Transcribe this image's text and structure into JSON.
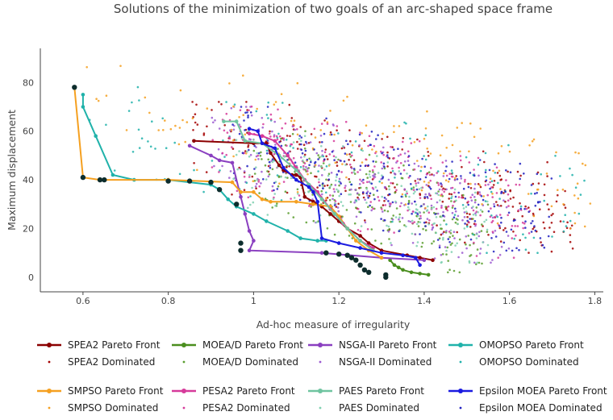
{
  "chart_data": {
    "type": "scatter",
    "title": "Solutions of the minimization of two goals of an arc-shaped space frame",
    "xlabel": "Ad-hoc measure of irregularity",
    "ylabel": "Maximum displacement",
    "xlim": [
      0.5,
      1.82
    ],
    "ylim": [
      -6,
      94
    ],
    "xticks": [
      "0.6",
      "0.8",
      "1",
      "1.2",
      "1.4",
      "1.6",
      "1.8"
    ],
    "yticks": [
      "0",
      "20",
      "40",
      "60",
      "80"
    ],
    "grid": false,
    "legend_position": "bottom",
    "series": [
      {
        "name": "SPEA2 Pareto Front",
        "role": "front",
        "color": "#8b0000",
        "points": [
          [
            0.86,
            56
          ],
          [
            1.0,
            55
          ],
          [
            1.03,
            55
          ],
          [
            1.04,
            51
          ],
          [
            1.06,
            46
          ],
          [
            1.07,
            44
          ],
          [
            1.09,
            42
          ],
          [
            1.1,
            42
          ],
          [
            1.11,
            41
          ],
          [
            1.12,
            33
          ],
          [
            1.14,
            31
          ],
          [
            1.16,
            29
          ],
          [
            1.18,
            26
          ],
          [
            1.2,
            23
          ],
          [
            1.22,
            20
          ],
          [
            1.25,
            17
          ],
          [
            1.27,
            14
          ],
          [
            1.3,
            11
          ],
          [
            1.36,
            9
          ],
          [
            1.39,
            8
          ],
          [
            1.42,
            7
          ]
        ]
      },
      {
        "name": "SPEA2 Dominated",
        "role": "dominated",
        "color": "#a40000",
        "region": [
          0.85,
          1.75,
          8,
          72
        ],
        "count": 260
      },
      {
        "name": "MOEA/D Pareto Front",
        "role": "front",
        "color": "#4a8e1e",
        "points": [
          [
            1.32,
            7
          ],
          [
            1.33,
            5
          ],
          [
            1.34,
            4
          ],
          [
            1.35,
            3
          ],
          [
            1.37,
            2
          ],
          [
            1.39,
            1.5
          ],
          [
            1.41,
            1
          ]
        ]
      },
      {
        "name": "MOEA/D Dominated",
        "role": "dominated",
        "color": "#5a9e2e",
        "region": [
          1.0,
          1.55,
          2,
          60
        ],
        "count": 220
      },
      {
        "name": "NSGA-II Pareto Front",
        "role": "front",
        "color": "#8a3fc0",
        "points": [
          [
            0.85,
            54
          ],
          [
            0.9,
            50
          ],
          [
            0.92,
            48
          ],
          [
            0.95,
            47
          ],
          [
            0.97,
            33
          ],
          [
            0.98,
            26
          ],
          [
            0.99,
            19
          ],
          [
            1.0,
            15
          ],
          [
            0.99,
            11
          ],
          [
            1.16,
            10
          ],
          [
            1.3,
            8
          ],
          [
            1.4,
            7
          ]
        ]
      },
      {
        "name": "NSGA-II Dominated",
        "role": "dominated",
        "color": "#9b59d0",
        "region": [
          0.9,
          1.6,
          6,
          70
        ],
        "count": 240
      },
      {
        "name": "OMOPSO Pareto Front",
        "role": "front",
        "color": "#20b2aa",
        "points": [
          [
            0.6,
            75
          ],
          [
            0.6,
            70
          ],
          [
            0.63,
            58
          ],
          [
            0.67,
            42
          ],
          [
            0.72,
            40
          ],
          [
            0.8,
            40
          ],
          [
            0.9,
            38
          ],
          [
            0.92,
            36
          ],
          [
            0.94,
            32
          ],
          [
            0.96,
            29
          ],
          [
            1.0,
            26
          ],
          [
            1.03,
            23
          ],
          [
            1.08,
            19
          ],
          [
            1.11,
            16
          ],
          [
            1.15,
            15
          ],
          [
            1.17,
            15
          ]
        ]
      },
      {
        "name": "OMOPSO Dominated",
        "role": "dominated",
        "color": "#20b2aa",
        "region": [
          0.6,
          1.78,
          10,
          82
        ],
        "count": 130
      },
      {
        "name": "SMPSO Pareto Front",
        "role": "front",
        "color": "#f5a020",
        "points": [
          [
            0.58,
            78
          ],
          [
            0.6,
            41
          ],
          [
            0.64,
            40
          ],
          [
            0.8,
            40
          ],
          [
            0.95,
            39
          ],
          [
            0.97,
            35
          ],
          [
            1.0,
            35
          ],
          [
            1.02,
            32
          ],
          [
            1.04,
            31
          ],
          [
            1.1,
            31
          ],
          [
            1.14,
            30
          ],
          [
            1.18,
            29
          ],
          [
            1.2,
            25
          ],
          [
            1.22,
            20
          ],
          [
            1.24,
            15
          ],
          [
            1.27,
            11
          ],
          [
            1.3,
            8
          ]
        ]
      },
      {
        "name": "SMPSO Dominated",
        "role": "dominated",
        "color": "#f5a020",
        "region": [
          0.6,
          1.8,
          20,
          90
        ],
        "count": 150
      },
      {
        "name": "PESA2 Pareto Front",
        "role": "front",
        "color": "#d63a9a",
        "points": [
          [
            0.99,
            59
          ],
          [
            1.02,
            58
          ],
          [
            1.05,
            56
          ],
          [
            1.08,
            50
          ],
          [
            1.1,
            45
          ],
          [
            1.12,
            40
          ],
          [
            1.15,
            35
          ],
          [
            1.18,
            28
          ],
          [
            1.21,
            22
          ],
          [
            1.25,
            15
          ],
          [
            1.28,
            12
          ]
        ]
      },
      {
        "name": "PESA2 Dominated",
        "role": "dominated",
        "color": "#d63a9a",
        "region": [
          0.9,
          1.65,
          8,
          72
        ],
        "count": 240
      },
      {
        "name": "PAES Pareto Front",
        "role": "front",
        "color": "#6fc4a0",
        "points": [
          [
            0.93,
            64
          ],
          [
            0.96,
            64
          ],
          [
            0.98,
            56
          ],
          [
            1.02,
            55
          ],
          [
            1.06,
            50
          ],
          [
            1.1,
            44
          ],
          [
            1.13,
            38
          ],
          [
            1.16,
            32
          ],
          [
            1.19,
            26
          ],
          [
            1.22,
            20
          ],
          [
            1.25,
            15
          ],
          [
            1.28,
            11
          ]
        ]
      },
      {
        "name": "PAES Dominated",
        "role": "dominated",
        "color": "#7fd0b0",
        "region": [
          0.95,
          1.55,
          6,
          60
        ],
        "count": 180
      },
      {
        "name": "Epsilon MOEA Pareto Front",
        "role": "front",
        "color": "#1a1ae0",
        "points": [
          [
            0.99,
            61
          ],
          [
            1.01,
            60
          ],
          [
            1.02,
            55
          ],
          [
            1.05,
            53
          ],
          [
            1.07,
            45
          ],
          [
            1.1,
            40
          ],
          [
            1.13,
            37
          ],
          [
            1.14,
            35
          ],
          [
            1.15,
            31
          ],
          [
            1.16,
            16
          ],
          [
            1.2,
            14
          ],
          [
            1.25,
            12
          ],
          [
            1.3,
            10
          ],
          [
            1.35,
            9
          ],
          [
            1.38,
            8
          ],
          [
            1.39,
            5
          ]
        ]
      },
      {
        "name": "Epsilon MOEA Dominated",
        "role": "dominated",
        "color": "#2020c0",
        "region": [
          0.95,
          1.7,
          6,
          70
        ],
        "count": 230
      },
      {
        "name": "Global Pareto Front",
        "role": "global",
        "color": "#0d2d2d",
        "points": [
          [
            0.58,
            78
          ],
          [
            0.6,
            41
          ],
          [
            0.64,
            40
          ],
          [
            0.65,
            40
          ],
          [
            0.8,
            39.5
          ],
          [
            0.85,
            39.5
          ],
          [
            0.9,
            39
          ],
          [
            0.92,
            36
          ],
          [
            0.96,
            30
          ],
          [
            0.97,
            14
          ],
          [
            0.97,
            11
          ],
          [
            1.17,
            10
          ],
          [
            1.2,
            9.5
          ],
          [
            1.22,
            9
          ],
          [
            1.23,
            8
          ],
          [
            1.24,
            7
          ],
          [
            1.25,
            5
          ],
          [
            1.26,
            3
          ],
          [
            1.27,
            2
          ],
          [
            1.31,
            1
          ],
          [
            1.31,
            0
          ]
        ]
      }
    ],
    "legend_rows": [
      [
        "SPEA2 Pareto Front",
        "MOEA/D Pareto Front",
        "NSGA-II Pareto Front",
        "OMOPSO Pareto Front"
      ],
      [
        "SPEA2 Dominated",
        "MOEA/D Dominated",
        "NSGA-II Dominated",
        "OMOPSO Dominated"
      ],
      [
        "SMPSO Pareto Front",
        "PESA2 Pareto Front",
        "PAES Pareto Front",
        "Epsilon MOEA Pareto Front"
      ],
      [
        "SMPSO Dominated",
        "PESA2 Dominated",
        "PAES Dominated",
        "Epsilon MOEA Dominated"
      ]
    ]
  }
}
